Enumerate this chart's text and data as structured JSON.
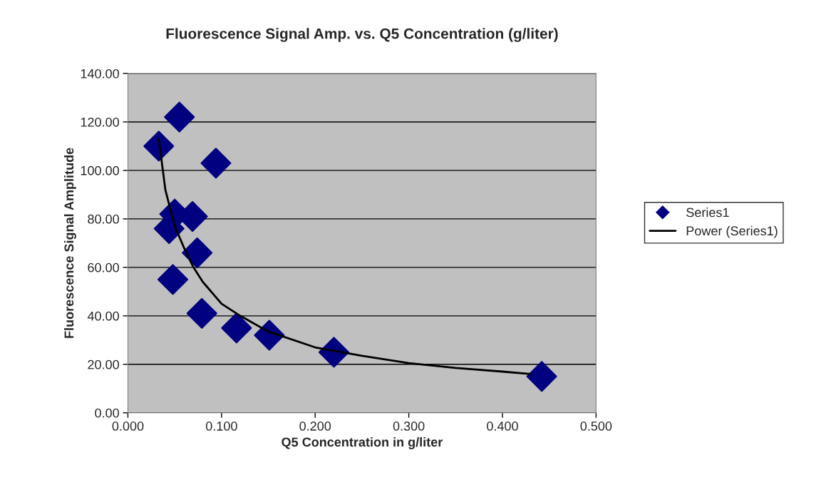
{
  "chart_data": {
    "type": "scatter",
    "title": "Fluorescence Signal Amp. vs. Q5 Concentration (g/liter)",
    "xlabel": "Q5 Concentration in g/liter",
    "ylabel": "Fluorescence Signal Amplitude",
    "series": [
      {
        "name": "Series1",
        "color": "#000080",
        "marker": "diamond",
        "x": [
          0.033,
          0.055,
          0.094,
          0.05,
          0.069,
          0.044,
          0.074,
          0.048,
          0.079,
          0.116,
          0.151,
          0.22,
          0.442
        ],
        "values": [
          110,
          122,
          103,
          82,
          81,
          76,
          66,
          55,
          41,
          35,
          32,
          25,
          15
        ]
      },
      {
        "name": "Power (Series1)",
        "type": "line",
        "color": "#000000",
        "line_style": "solid",
        "x": [
          0.033,
          0.04,
          0.05,
          0.06,
          0.07,
          0.08,
          0.1,
          0.12,
          0.15,
          0.2,
          0.25,
          0.3,
          0.35,
          0.4,
          0.43
        ],
        "values": [
          113,
          92,
          77,
          68,
          60,
          54,
          45,
          40,
          33.5,
          27,
          23.5,
          20.5,
          18.5,
          17,
          16
        ]
      }
    ],
    "xlim": [
      0,
      0.5
    ],
    "ylim": [
      0,
      140
    ],
    "xticks": [
      {
        "value": 0,
        "label": "0.000"
      },
      {
        "value": 0.1,
        "label": "0.100"
      },
      {
        "value": 0.2,
        "label": "0.200"
      },
      {
        "value": 0.3,
        "label": "0.300"
      },
      {
        "value": 0.4,
        "label": "0.400"
      },
      {
        "value": 0.5,
        "label": "0.500"
      }
    ],
    "yticks": [
      {
        "value": 0,
        "label": "0.00"
      },
      {
        "value": 20,
        "label": "20.00"
      },
      {
        "value": 40,
        "label": "40.00"
      },
      {
        "value": 60,
        "label": "60.00"
      },
      {
        "value": 80,
        "label": "80.00"
      },
      {
        "value": 100,
        "label": "100.00"
      },
      {
        "value": 120,
        "label": "120.00"
      },
      {
        "value": 140,
        "label": "140.00"
      }
    ],
    "grid": "y",
    "legend": "right"
  }
}
